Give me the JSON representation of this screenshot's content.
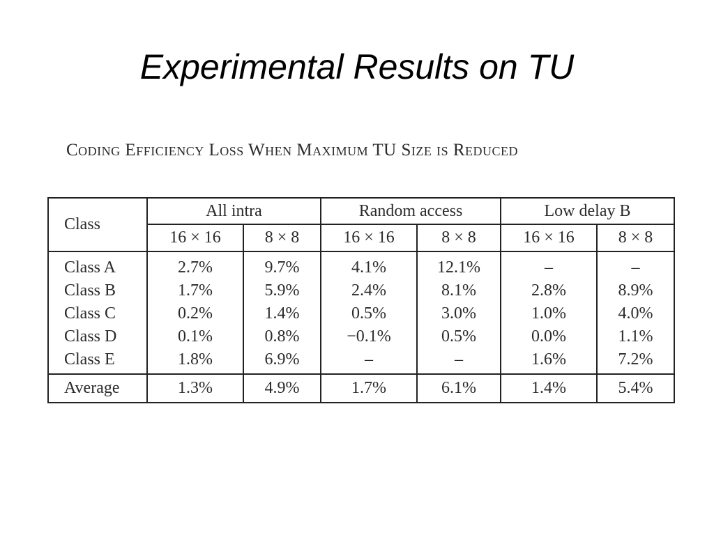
{
  "slide": {
    "title": "Experimental Results on TU"
  },
  "table": {
    "caption": "Coding Efficiency Loss When Maximum TU Size is Reduced",
    "class_header": "Class",
    "groups": [
      "All intra",
      "Random access",
      "Low delay B"
    ],
    "subheaders": [
      "16 × 16",
      "8 × 8",
      "16 × 16",
      "8 × 8",
      "16 × 16",
      "8 × 8"
    ],
    "rows": [
      {
        "label": "Class A",
        "values": [
          "2.7%",
          "9.7%",
          "4.1%",
          "12.1%",
          "–",
          "–"
        ]
      },
      {
        "label": "Class B",
        "values": [
          "1.7%",
          "5.9%",
          "2.4%",
          "8.1%",
          "2.8%",
          "8.9%"
        ]
      },
      {
        "label": "Class C",
        "values": [
          "0.2%",
          "1.4%",
          "0.5%",
          "3.0%",
          "1.0%",
          "4.0%"
        ]
      },
      {
        "label": "Class D",
        "values": [
          "0.1%",
          "0.8%",
          "−0.1%",
          "0.5%",
          "0.0%",
          "1.1%"
        ]
      },
      {
        "label": "Class E",
        "values": [
          "1.8%",
          "6.9%",
          "–",
          "–",
          "1.6%",
          "7.2%"
        ]
      }
    ],
    "average": {
      "label": "Average",
      "values": [
        "1.3%",
        "4.9%",
        "1.7%",
        "6.1%",
        "1.4%",
        "5.4%"
      ]
    }
  }
}
